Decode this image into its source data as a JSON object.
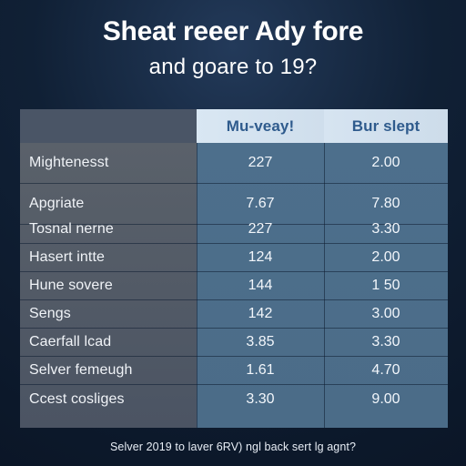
{
  "header": {
    "title_line1": "Sheat reeer Ady fore",
    "title_line2": "and goare to 19?"
  },
  "chart_data": {
    "type": "table",
    "columns": [
      "",
      "Mu-veay!",
      "Bur slept"
    ],
    "rows": [
      {
        "label": "Mightenesst",
        "col1": "227",
        "col2": "2.00"
      },
      {
        "label": "Apgriate",
        "col1": "7.67",
        "col2": "7.80"
      },
      {
        "label": "Tosnal nerne",
        "col1": "227",
        "col2": "3.30"
      },
      {
        "label": "Hasert intte",
        "col1": "124",
        "col2": "2.00"
      },
      {
        "label": "Hune sovere",
        "col1": "144",
        "col2": "1 50"
      },
      {
        "label": "Sengs",
        "col1": "142",
        "col2": "3.00"
      },
      {
        "label": "Caerfall lcad",
        "col1": "3.85",
        "col2": "3.30"
      },
      {
        "label": "Selver femeugh",
        "col1": "1.61",
        "col2": "4.70"
      },
      {
        "label": "Ccest cosliges",
        "col1": "3.30",
        "col2": "9.00"
      }
    ]
  },
  "footer": {
    "text": "Selver 2019 to laver 6RV) ngl back sert lg agnt?"
  }
}
